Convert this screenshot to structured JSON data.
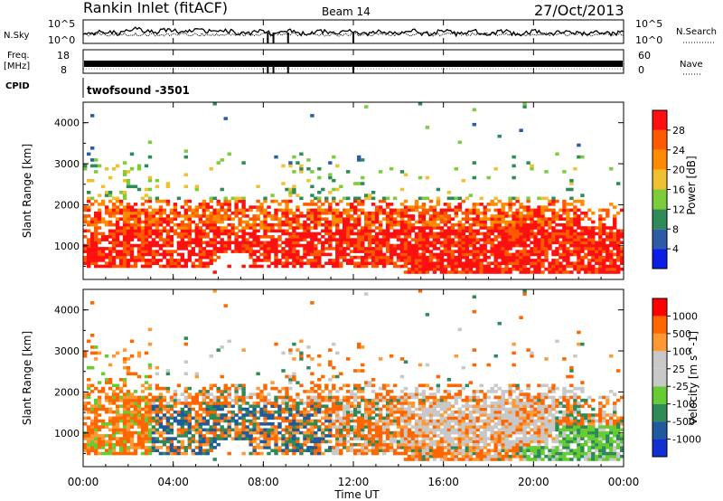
{
  "header": {
    "station": "Rankin Inlet (fitACF)",
    "beam": "Beam 14",
    "date": "27/Oct/2013"
  },
  "panel_labels": {
    "nsky": "N.Sky",
    "nsearch": "N.Search",
    "freq_line1": "Freq.",
    "freq_line2": "[MHz]",
    "nave": "Nave",
    "cpid": "CPID",
    "cpid_value": "twofsound -3501"
  },
  "colors": {
    "power": [
      "#0a1ee6",
      "#2c5ca6",
      "#2e8b57",
      "#7ccd3c",
      "#f0c030",
      "#ff8c00",
      "#ff5a00",
      "#ff1010"
    ],
    "velocity": [
      "#ff0000",
      "#ff6600",
      "#ff9933",
      "#c8c8c8",
      "#c8c8c8",
      "#66cc33",
      "#2e8b57",
      "#1f5a9e",
      "#1030d0"
    ]
  },
  "chart_data": [
    {
      "type": "line",
      "name": "noise-panel",
      "left_axis": {
        "label": "N.Sky",
        "ticks": [
          "10^5",
          "10^0"
        ]
      },
      "right_axis": {
        "label": "N.Search",
        "ticks": [
          "10^5",
          "10^0"
        ]
      }
    },
    {
      "type": "line",
      "name": "frequency-panel",
      "left_axis": {
        "label": "Freq. [MHz]",
        "ticks": [
          "18",
          "8"
        ]
      },
      "right_axis": {
        "label": "Nave",
        "ticks": [
          "60",
          "0"
        ]
      }
    },
    {
      "type": "heatmap",
      "name": "power-panel",
      "ylabel": "Slant Range [km]",
      "ylim": [
        180,
        4500
      ],
      "yticks": [
        1000,
        2000,
        3000,
        4000
      ],
      "xlim": [
        0,
        24
      ],
      "colorbar": {
        "label": "Power [dB]",
        "ticks": [
          4,
          8,
          12,
          16,
          20,
          24,
          28
        ]
      }
    },
    {
      "type": "heatmap",
      "name": "velocity-panel",
      "ylabel": "Slant Range [km]",
      "ylim": [
        180,
        4500
      ],
      "yticks": [
        1000,
        2000,
        3000,
        4000
      ],
      "xlim": [
        0,
        24
      ],
      "xlabel": "Time UT",
      "xticks": [
        "00:00",
        "04:00",
        "08:00",
        "12:00",
        "16:00",
        "20:00",
        "00:00"
      ],
      "colorbar": {
        "label": "Velocity [m s^-1]",
        "ticks": [
          1000,
          500,
          100,
          25,
          -25,
          -100,
          -500,
          -1000
        ]
      }
    }
  ]
}
